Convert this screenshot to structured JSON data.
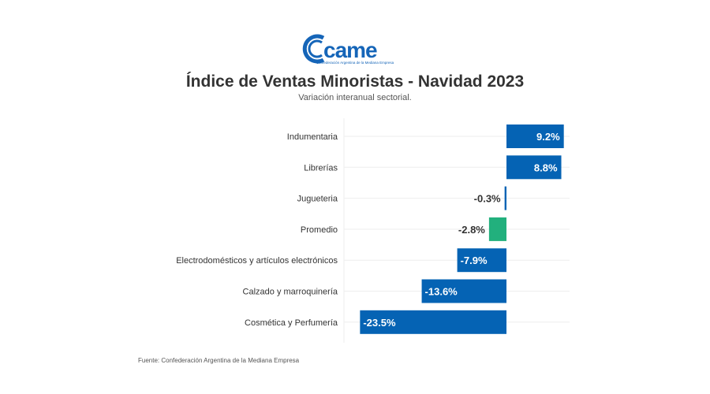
{
  "header": {
    "logo_text": "came",
    "logo_subtitle": "Confederación Argentina de la Mediana Empresa",
    "title": "Índice de Ventas Minoristas - Navidad 2023",
    "subtitle": "Variación interanual sectorial."
  },
  "footer": {
    "source": "Fuente: Confederación Argentina de la Mediana Empresa"
  },
  "colors": {
    "bar_default": "#0563b4",
    "bar_highlight": "#22b07d",
    "grid": "#eeeeee",
    "label_dark": "#333333",
    "label_light": "#ffffff",
    "brand": "#1565b8"
  },
  "chart_data": {
    "type": "bar",
    "orientation": "horizontal",
    "title": "Índice de Ventas Minoristas - Navidad 2023",
    "subtitle": "Variación interanual sectorial.",
    "xlabel": "",
    "ylabel": "",
    "unit": "%",
    "categories": [
      "Indumentaria",
      "Librerías",
      "Jugueteria",
      "Promedio",
      "Electrodomésticos y artículos electrónicos",
      "Calzado y marroquinería",
      "Cosmética y Perfumería"
    ],
    "values": [
      9.2,
      8.8,
      -0.3,
      -2.8,
      -7.9,
      -13.6,
      -23.5
    ],
    "value_labels": [
      "9.2%",
      "8.8%",
      "-0.3%",
      "-2.8%",
      "-7.9%",
      "-13.6%",
      "-23.5%"
    ],
    "highlight": [
      "Promedio"
    ],
    "xlim": [
      -25,
      10
    ],
    "grid": true,
    "legend": "none",
    "source": "Fuente: Confederación Argentina de la Mediana Empresa"
  }
}
